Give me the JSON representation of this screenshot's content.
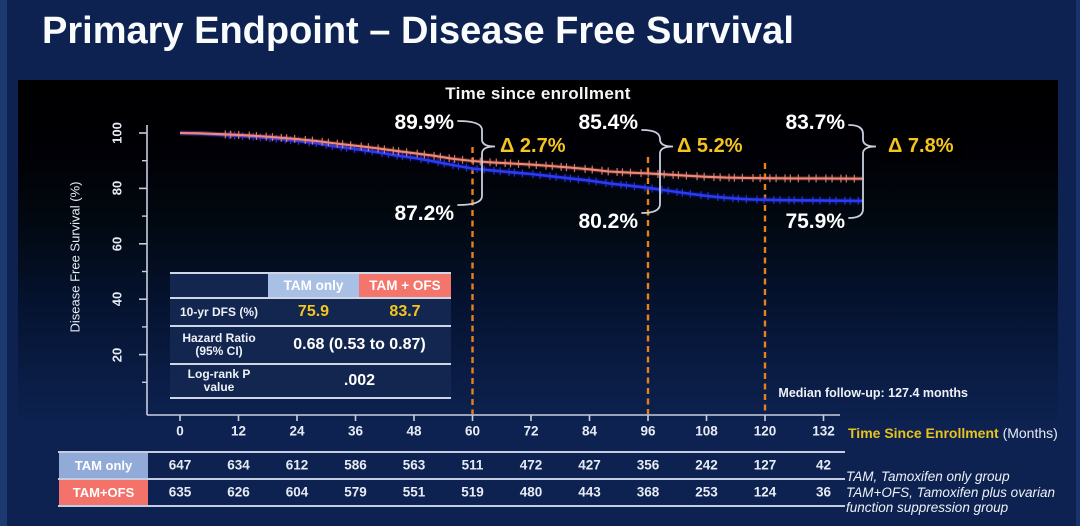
{
  "slide": {
    "title": "Primary Endpoint – Disease Free Survival"
  },
  "chart": {
    "title": "Time since enrollment",
    "median_note": "Median follow-up: 127.4 months",
    "y_axis": {
      "label": "Disease Free Survival (%)"
    },
    "x_axis": {
      "title": "Time Since Enrollment",
      "units": "(Months)"
    }
  },
  "chart_data": {
    "type": "line",
    "subtype": "kaplan-meier",
    "title": "Time since enrollment",
    "xlabel": "Time Since Enrollment (Months)",
    "ylabel": "Disease Free Survival (%)",
    "xlim": [
      0,
      140
    ],
    "ylim": [
      0,
      100
    ],
    "x_ticks": [
      0,
      12,
      24,
      36,
      48,
      60,
      72,
      84,
      96,
      108,
      120,
      132
    ],
    "y_ticks_major": [
      100,
      80,
      60,
      40,
      20
    ],
    "y_ticks_minor": [
      90,
      70,
      50,
      30,
      10
    ],
    "grid": false,
    "series": [
      {
        "name": "TAM only",
        "color": "#2b3bf2",
        "glow": "#1520d0",
        "points": [
          [
            0,
            100
          ],
          [
            4,
            99.8
          ],
          [
            8,
            99.4
          ],
          [
            12,
            99.0
          ],
          [
            16,
            98.5
          ],
          [
            20,
            97.9
          ],
          [
            24,
            97.2
          ],
          [
            28,
            96.3
          ],
          [
            32,
            95.1
          ],
          [
            36,
            94.2
          ],
          [
            40,
            93.2
          ],
          [
            44,
            92.0
          ],
          [
            48,
            91.0
          ],
          [
            52,
            89.8
          ],
          [
            56,
            88.4
          ],
          [
            60,
            87.2
          ],
          [
            64,
            86.5
          ],
          [
            68,
            85.8
          ],
          [
            72,
            85.2
          ],
          [
            76,
            84.4
          ],
          [
            80,
            83.6
          ],
          [
            84,
            82.8
          ],
          [
            88,
            81.8
          ],
          [
            92,
            81.0
          ],
          [
            96,
            80.2
          ],
          [
            100,
            79.2
          ],
          [
            104,
            78.2
          ],
          [
            108,
            77.3
          ],
          [
            112,
            76.6
          ],
          [
            116,
            76.1
          ],
          [
            120,
            75.9
          ],
          [
            126,
            75.7
          ],
          [
            132,
            75.6
          ],
          [
            140,
            75.5
          ]
        ]
      },
      {
        "name": "TAM+OFS",
        "color": "#ef8a7a",
        "glow": "#c45548",
        "points": [
          [
            0,
            100
          ],
          [
            4,
            99.9
          ],
          [
            8,
            99.6
          ],
          [
            12,
            99.3
          ],
          [
            16,
            98.9
          ],
          [
            20,
            98.4
          ],
          [
            24,
            97.8
          ],
          [
            28,
            97.1
          ],
          [
            32,
            96.2
          ],
          [
            36,
            95.4
          ],
          [
            40,
            94.6
          ],
          [
            44,
            93.6
          ],
          [
            48,
            92.7
          ],
          [
            52,
            91.8
          ],
          [
            56,
            90.7
          ],
          [
            60,
            89.9
          ],
          [
            64,
            89.4
          ],
          [
            68,
            89.0
          ],
          [
            72,
            88.6
          ],
          [
            76,
            88.1
          ],
          [
            80,
            87.5
          ],
          [
            84,
            86.9
          ],
          [
            88,
            86.1
          ],
          [
            92,
            85.7
          ],
          [
            96,
            85.4
          ],
          [
            100,
            85.0
          ],
          [
            104,
            84.6
          ],
          [
            108,
            84.2
          ],
          [
            112,
            83.9
          ],
          [
            116,
            83.8
          ],
          [
            120,
            83.7
          ],
          [
            126,
            83.6
          ],
          [
            132,
            83.6
          ],
          [
            140,
            83.5
          ]
        ]
      }
    ],
    "annotations": [
      {
        "month": 60,
        "top": "89.9%",
        "bottom": "87.2%",
        "delta": "Δ 2.7%",
        "boxed": false
      },
      {
        "month": 96,
        "top": "85.4%",
        "bottom": "80.2%",
        "delta": "Δ 5.2%",
        "boxed": false
      },
      {
        "month": 120,
        "top": "83.7%",
        "bottom": "75.9%",
        "delta": "Δ 7.8%",
        "boxed": true
      }
    ]
  },
  "stats_table": {
    "col1": "TAM only",
    "col2": "TAM + OFS",
    "rows": [
      {
        "label": "10-yr DFS (%)",
        "val1": "75.9",
        "val2": "83.7"
      },
      {
        "label": "Hazard Ratio (95% CI)",
        "value": "0.68 (0.53 to 0.87)"
      },
      {
        "label": "Log-rank P value",
        "value": ".002"
      }
    ]
  },
  "risk_table": {
    "rows": [
      {
        "label": "TAM only",
        "color": "#92aad8",
        "values": [
          "647",
          "634",
          "612",
          "586",
          "563",
          "511",
          "472",
          "427",
          "356",
          "242",
          "127",
          "42"
        ]
      },
      {
        "label": "TAM+OFS",
        "color": "#f3726a",
        "values": [
          "635",
          "626",
          "604",
          "579",
          "551",
          "519",
          "480",
          "443",
          "368",
          "253",
          "124",
          "36"
        ]
      }
    ]
  },
  "footnote": {
    "line1": "TAM, Tamoxifen only group",
    "line2": "TAM+OFS, Tamoxifen plus ovarian function suppression group"
  },
  "colors": {
    "slide_bg": "#0d2250",
    "gold": "#f5c51f",
    "dash_orange": "#e8811b",
    "axis": "#c8cede",
    "brace": "#c9cfdd"
  }
}
